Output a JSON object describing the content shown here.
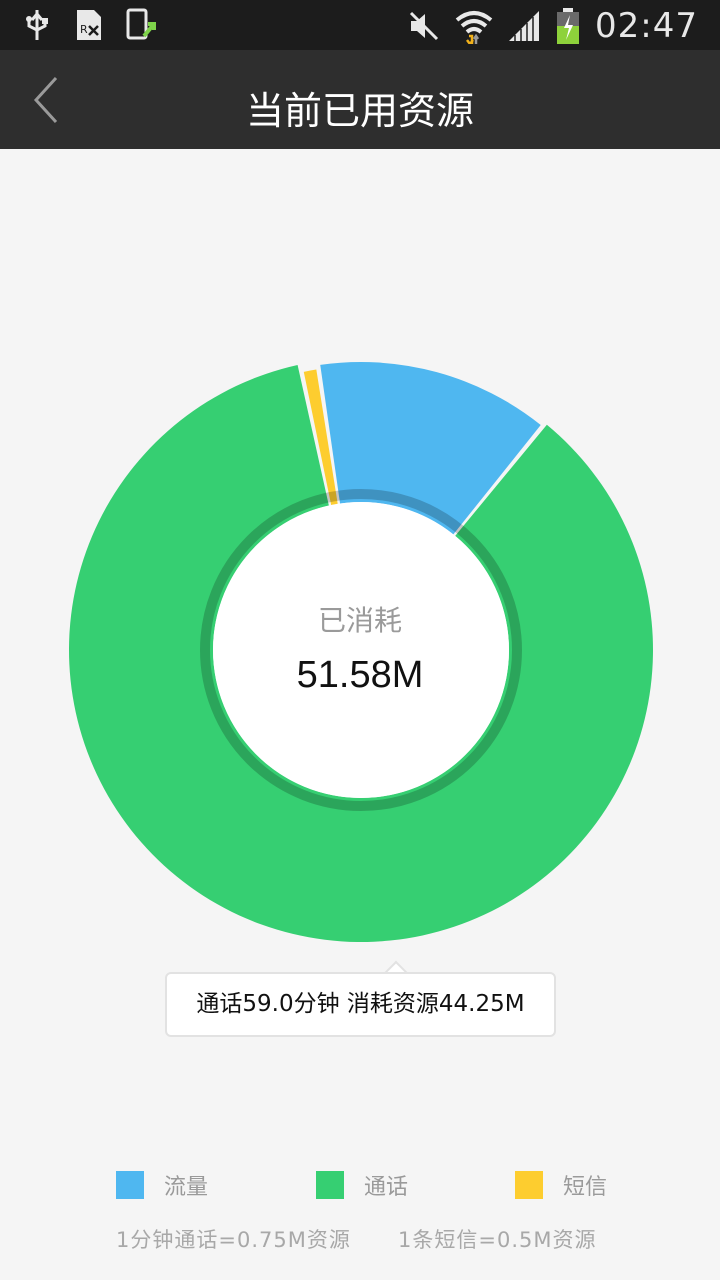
{
  "status_bar": {
    "time": "02:47",
    "icons": [
      "usb-icon",
      "sim-icon",
      "phone-update-icon",
      "mute-icon",
      "wifi-icon",
      "signal-icon",
      "battery-icon"
    ]
  },
  "header": {
    "title": "当前已用资源",
    "back_icon": "chevron-left-icon"
  },
  "center": {
    "label": "已消耗",
    "value": "51.58M"
  },
  "tooltip": {
    "text": "通话59.0分钟 消耗资源44.25M"
  },
  "legend": [
    {
      "label": "流量",
      "color": "#4fb7f0"
    },
    {
      "label": "通话",
      "color": "#36cf72"
    },
    {
      "label": "短信",
      "color": "#fdcd2f"
    }
  ],
  "footnote": {
    "call_rate": "1分钟通话=0.75M资源",
    "sms_rate": "1条短信=0.5M资源"
  },
  "chart_data": {
    "type": "pie",
    "categories": [
      "流量",
      "通话",
      "短信"
    ],
    "values": [
      6.83,
      44.25,
      0.5
    ],
    "colors": [
      "#4fb7f0",
      "#36cf72",
      "#fdcd2f"
    ],
    "total": 51.58,
    "highlighted": "通话"
  }
}
